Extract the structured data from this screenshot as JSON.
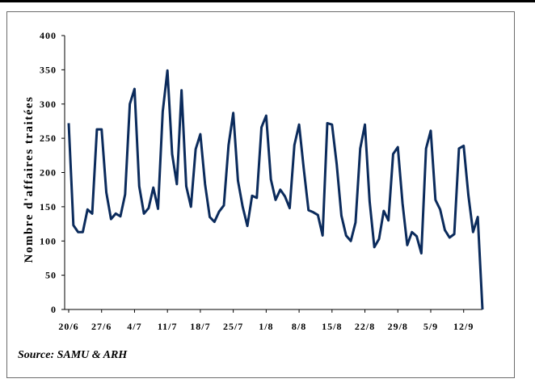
{
  "chart_data": {
    "type": "line",
    "ylabel": "Nombre d'affaires traitées",
    "xlabel": "",
    "ylim": [
      0,
      400
    ],
    "yticks": [
      0,
      50,
      100,
      150,
      200,
      250,
      300,
      350,
      400
    ],
    "x_tick_labels": [
      "20/6",
      "27/6",
      "4/7",
      "11/7",
      "18/7",
      "25/7",
      "1/8",
      "8/8",
      "15/8",
      "22/8",
      "29/8",
      "5/9",
      "12/9"
    ],
    "series_color": "#0b2b5c",
    "values": [
      272,
      123,
      113,
      113,
      146,
      140,
      263,
      263,
      171,
      132,
      140,
      136,
      168,
      300,
      322,
      180,
      140,
      148,
      178,
      147,
      289,
      349,
      227,
      183,
      320,
      180,
      150,
      234,
      256,
      183,
      135,
      128,
      143,
      152,
      240,
      287,
      188,
      150,
      122,
      166,
      163,
      266,
      283,
      190,
      160,
      175,
      165,
      148,
      240,
      270,
      205,
      145,
      142,
      138,
      108,
      272,
      270,
      212,
      137,
      108,
      100,
      127,
      235,
      270,
      158,
      91,
      103,
      144,
      130,
      227,
      237,
      155,
      94,
      113,
      107,
      82,
      235,
      261,
      160,
      146,
      116,
      105,
      110,
      235,
      239,
      167,
      113,
      135,
      0
    ],
    "grid": false,
    "legend": "none"
  },
  "source_text": "Source: SAMU & ARH"
}
